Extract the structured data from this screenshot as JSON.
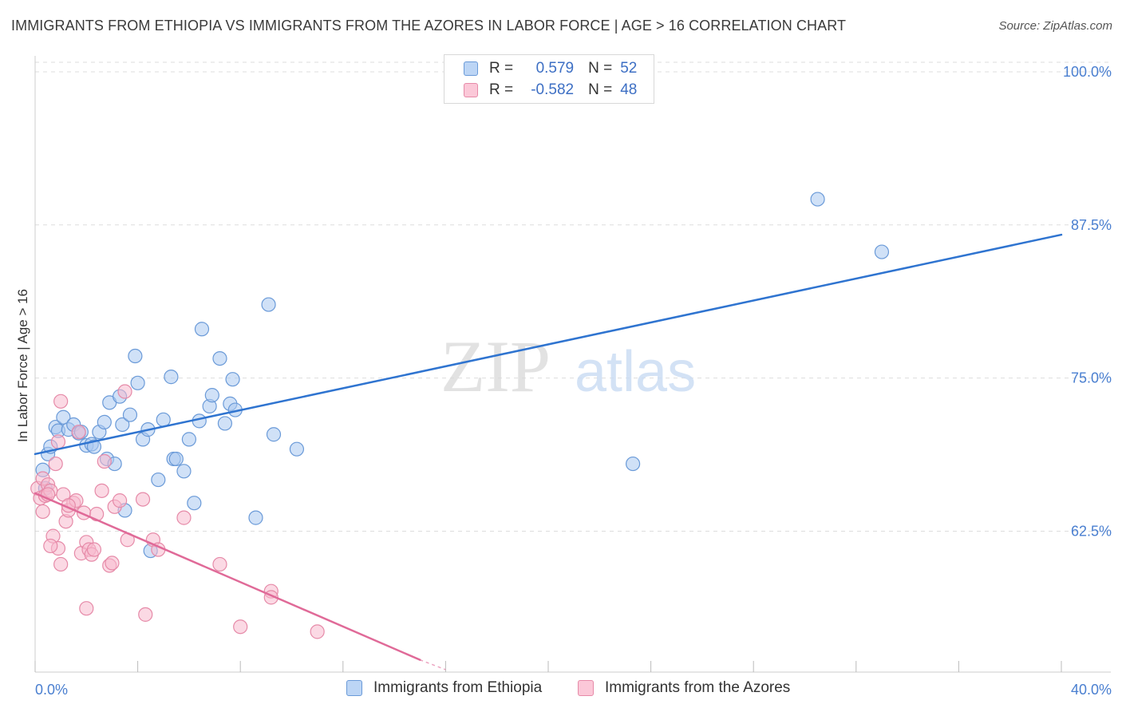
{
  "header": {
    "title": "IMMIGRANTS FROM ETHIOPIA VS IMMIGRANTS FROM THE AZORES IN LABOR FORCE | AGE > 16 CORRELATION CHART",
    "source": "Source: ZipAtlas.com"
  },
  "watermark": {
    "zip": "ZIP",
    "atlas": "atlas"
  },
  "legend": {
    "rows": [
      {
        "r_label": "R =",
        "r_value": "0.579",
        "n_label": "N =",
        "n_value": "52"
      },
      {
        "r_label": "R =",
        "r_value": "-0.582",
        "n_label": "N =",
        "n_value": "48"
      }
    ]
  },
  "colors": {
    "ethiopia_fill": "#a9c8f0",
    "ethiopia_stroke": "#6a9ad8",
    "ethiopia_line": "#2f74d0",
    "azores_fill": "#f7b9cd",
    "azores_stroke": "#e68aa8",
    "azores_line": "#e06a98",
    "tick_text": "#4a7fd0",
    "grid": "#dddddd"
  },
  "chart_data": {
    "type": "scatter",
    "title": "IMMIGRANTS FROM ETHIOPIA VS IMMIGRANTS FROM THE AZORES IN LABOR FORCE | AGE > 16 CORRELATION CHART",
    "xlabel": "",
    "ylabel": "In Labor Force | Age > 16",
    "xlim": [
      0,
      40
    ],
    "ylim": [
      51.0,
      101.3
    ],
    "x_tick_labels": [
      "0.0%",
      "40.0%"
    ],
    "y_ticks": [
      62.5,
      75.0,
      87.5,
      100.0
    ],
    "y_tick_labels": [
      "62.5%",
      "75.0%",
      "87.5%",
      "100.0%"
    ],
    "x_tick_marks": [
      0,
      4,
      8,
      12,
      16,
      20,
      24,
      28,
      32,
      36,
      40
    ],
    "series": [
      {
        "name": "Immigrants from Ethiopia",
        "r": 0.579,
        "n": 52,
        "trend": {
          "x0": 0,
          "y0": 68.8,
          "x1": 40,
          "y1": 86.7,
          "dashed_to": null
        },
        "points": [
          [
            0.3,
            67.5
          ],
          [
            0.4,
            66.0
          ],
          [
            0.5,
            68.8
          ],
          [
            0.6,
            69.4
          ],
          [
            0.8,
            71.0
          ],
          [
            0.9,
            70.7
          ],
          [
            1.1,
            71.8
          ],
          [
            1.3,
            70.8
          ],
          [
            1.5,
            71.2
          ],
          [
            1.7,
            70.5
          ],
          [
            1.8,
            70.6
          ],
          [
            2.0,
            69.5
          ],
          [
            2.2,
            69.6
          ],
          [
            2.3,
            69.4
          ],
          [
            2.5,
            70.6
          ],
          [
            2.7,
            71.4
          ],
          [
            2.8,
            68.4
          ],
          [
            2.9,
            73.0
          ],
          [
            3.1,
            68.0
          ],
          [
            3.3,
            73.5
          ],
          [
            3.4,
            71.2
          ],
          [
            3.5,
            64.2
          ],
          [
            3.7,
            72.0
          ],
          [
            3.9,
            76.8
          ],
          [
            4.0,
            74.6
          ],
          [
            4.2,
            70.0
          ],
          [
            4.4,
            70.8
          ],
          [
            4.5,
            60.9
          ],
          [
            4.8,
            66.7
          ],
          [
            5.0,
            71.6
          ],
          [
            5.3,
            75.1
          ],
          [
            5.4,
            68.4
          ],
          [
            5.5,
            68.4
          ],
          [
            5.8,
            67.4
          ],
          [
            6.0,
            70.0
          ],
          [
            6.2,
            64.8
          ],
          [
            6.4,
            71.5
          ],
          [
            6.5,
            79.0
          ],
          [
            6.8,
            72.7
          ],
          [
            6.9,
            73.6
          ],
          [
            7.2,
            76.6
          ],
          [
            7.4,
            71.3
          ],
          [
            7.6,
            72.9
          ],
          [
            7.7,
            74.9
          ],
          [
            7.8,
            72.4
          ],
          [
            8.6,
            63.6
          ],
          [
            9.1,
            81.0
          ],
          [
            9.3,
            70.4
          ],
          [
            10.2,
            69.2
          ],
          [
            23.3,
            68.0
          ],
          [
            30.5,
            89.6
          ],
          [
            33.0,
            85.3
          ]
        ]
      },
      {
        "name": "Immigrants from the Azores",
        "r": -0.582,
        "n": 48,
        "trend": {
          "x0": 0,
          "y0": 65.6,
          "x1": 15.0,
          "y1": 52.0,
          "dashed_to": [
            16.0,
            51.2
          ]
        },
        "points": [
          [
            0.1,
            66.0
          ],
          [
            0.2,
            65.2
          ],
          [
            0.3,
            64.1
          ],
          [
            0.3,
            66.8
          ],
          [
            0.4,
            65.4
          ],
          [
            0.5,
            66.3
          ],
          [
            0.6,
            65.8
          ],
          [
            0.7,
            62.1
          ],
          [
            0.8,
            68.0
          ],
          [
            0.9,
            61.1
          ],
          [
            1.0,
            59.8
          ],
          [
            1.1,
            65.5
          ],
          [
            1.2,
            63.3
          ],
          [
            1.3,
            64.2
          ],
          [
            1.5,
            64.8
          ],
          [
            1.6,
            65.0
          ],
          [
            1.8,
            60.7
          ],
          [
            1.9,
            64.0
          ],
          [
            2.0,
            56.2
          ],
          [
            2.0,
            61.6
          ],
          [
            2.1,
            61.0
          ],
          [
            2.2,
            60.6
          ],
          [
            2.4,
            63.9
          ],
          [
            2.6,
            65.8
          ],
          [
            2.7,
            68.2
          ],
          [
            2.9,
            59.7
          ],
          [
            3.0,
            59.9
          ],
          [
            3.1,
            64.5
          ],
          [
            3.3,
            65.0
          ],
          [
            3.5,
            73.9
          ],
          [
            3.6,
            61.8
          ],
          [
            4.2,
            65.1
          ],
          [
            4.3,
            55.7
          ],
          [
            4.6,
            61.8
          ],
          [
            4.8,
            61.0
          ],
          [
            5.8,
            63.6
          ],
          [
            7.2,
            59.8
          ],
          [
            8.0,
            54.7
          ],
          [
            9.2,
            57.6
          ],
          [
            9.2,
            57.1
          ],
          [
            11.0,
            54.3
          ],
          [
            1.7,
            70.6
          ],
          [
            0.9,
            69.8
          ],
          [
            1.0,
            73.1
          ],
          [
            0.5,
            65.5
          ],
          [
            1.3,
            64.6
          ],
          [
            2.3,
            61.0
          ],
          [
            0.6,
            61.3
          ]
        ]
      }
    ],
    "legend_position": "top-center"
  },
  "bottom_legend": {
    "items": [
      "Immigrants from Ethiopia",
      "Immigrants from the Azores"
    ]
  }
}
